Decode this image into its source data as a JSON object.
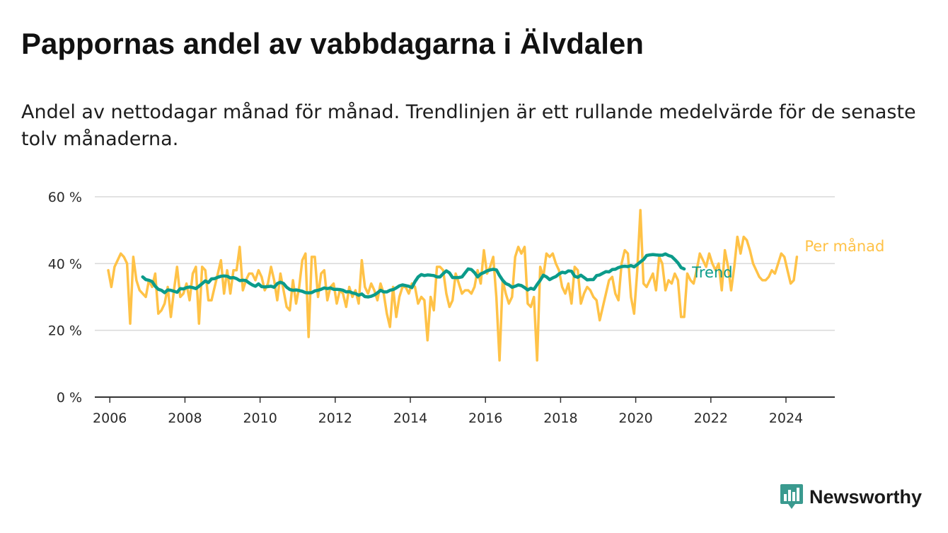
{
  "header": {
    "title": "Pappornas andel av vabbdagarna i Älvdalen",
    "subtitle": "Andel av nettodagar månad för månad. Trendlinjen är ett rullande medelvärde för de senaste tolv månaderna."
  },
  "brand": {
    "name": "Newsworthy",
    "color": "#3a9a8f",
    "icon": "bar-chart-badge-icon"
  },
  "chart_data": {
    "type": "line",
    "ylim": [
      0,
      60
    ],
    "yticks": [
      0,
      20,
      40,
      60
    ],
    "ytick_labels": [
      "0 %",
      "20 %",
      "40 %",
      "60 %"
    ],
    "xlim": [
      2005.6,
      2025.3
    ],
    "xticks": [
      2006,
      2008,
      2010,
      2012,
      2014,
      2016,
      2018,
      2020,
      2022,
      2024
    ],
    "xtick_labels": [
      "2006",
      "2008",
      "2010",
      "2012",
      "2014",
      "2016",
      "2018",
      "2020",
      "2022",
      "2024"
    ],
    "grid": true,
    "legend_position": "right-end",
    "series": [
      {
        "name": "Per månad",
        "color": "#ffc247",
        "x_start": 2005.958,
        "step": 0.08333,
        "values": [
          38,
          33,
          39,
          41,
          43,
          42,
          40,
          22,
          42,
          35,
          32,
          31,
          30,
          35,
          33,
          37,
          25,
          26,
          28,
          33,
          24,
          32,
          39,
          30,
          31,
          34,
          29,
          37,
          39,
          22,
          39,
          38,
          29,
          29,
          33,
          37,
          41,
          31,
          38,
          31,
          38,
          38,
          45,
          32,
          35,
          37,
          37,
          35,
          38,
          36,
          32,
          34,
          39,
          35,
          29,
          37,
          32,
          27,
          26,
          35,
          28,
          33,
          41,
          43,
          18,
          42,
          42,
          30,
          37,
          38,
          29,
          33,
          34,
          28,
          32,
          31,
          27,
          33,
          30,
          32,
          28,
          41,
          33,
          31,
          34,
          32,
          29,
          34,
          31,
          25,
          21,
          33,
          24,
          30,
          33,
          33,
          31,
          34,
          33,
          28,
          30,
          29,
          17,
          30,
          26,
          39,
          39,
          38,
          31,
          27,
          29,
          37,
          34,
          31,
          32,
          32,
          31,
          33,
          38,
          34,
          44,
          37,
          39,
          42,
          30,
          11,
          35,
          31,
          28,
          30,
          42,
          45,
          43,
          45,
          28,
          27,
          30,
          11,
          39,
          36,
          43,
          42,
          43,
          40,
          38,
          33,
          31,
          34,
          28,
          39,
          38,
          28,
          31,
          33,
          32,
          30,
          29,
          23,
          27,
          31,
          35,
          36,
          31,
          29,
          40,
          44,
          43,
          30,
          25,
          38,
          56,
          34,
          33,
          35,
          37,
          32,
          42,
          40,
          32,
          35,
          34,
          37,
          35,
          24,
          24,
          37,
          35,
          34,
          38,
          43,
          41,
          39,
          43,
          40,
          38,
          40,
          32,
          44,
          39,
          32,
          39,
          48,
          43,
          48,
          47,
          44,
          40,
          38,
          36,
          35,
          35,
          36,
          38,
          37,
          40,
          43,
          42,
          38,
          34,
          35,
          42
        ]
      },
      {
        "name": "Trend",
        "color": "#0b9b8a",
        "x_start": 2006.875,
        "step": 0.08333,
        "values": [
          36,
          35.2,
          35,
          34.6,
          33.2,
          32.3,
          32,
          31.3,
          32.1,
          32,
          31.7,
          31.4,
          32.5,
          32.4,
          32.8,
          33,
          32.8,
          32.5,
          33.2,
          34,
          34.8,
          34.3,
          35.4,
          35.5,
          35.9,
          36.2,
          36.3,
          36.2,
          35.7,
          35.8,
          35.5,
          34.9,
          35,
          34.9,
          34.2,
          33.6,
          33.2,
          33.9,
          33.1,
          33,
          33.1,
          33.2,
          32.9,
          34,
          34.4,
          34,
          32.9,
          32.2,
          32,
          32.1,
          31.9,
          31.7,
          31.3,
          31.2,
          31.3,
          31.8,
          32,
          32.3,
          32.7,
          32.5,
          32.7,
          32.3,
          32.3,
          32.2,
          32,
          31.5,
          31.6,
          31.2,
          31,
          30.5,
          30.9,
          30.1,
          30,
          30.2,
          30.6,
          31.2,
          32,
          31.5,
          31.5,
          32,
          32.2,
          32.7,
          33.3,
          33.6,
          33.4,
          33.2,
          32.8,
          34.6,
          36,
          36.7,
          36.4,
          36.6,
          36.5,
          36.4,
          36,
          36,
          37,
          37.8,
          37.2,
          35.8,
          35.8,
          35.8,
          36,
          37.2,
          38.4,
          38.2,
          37.3,
          36,
          36.9,
          37.3,
          37.8,
          38.1,
          38.3,
          38.1,
          36.4,
          35,
          34,
          33.6,
          32.9,
          33.2,
          33.6,
          33.4,
          32.8,
          32.1,
          32.6,
          32.3,
          33.7,
          35,
          36.5,
          36,
          35.2,
          35.7,
          36.1,
          36.9,
          37.4,
          37.2,
          37.8,
          37.7,
          36.2,
          35.9,
          36.5,
          35.8,
          35.1,
          35.2,
          35.2,
          36.4,
          36.6,
          37.1,
          37.6,
          37.5,
          38.2,
          38.3,
          38.8,
          39.1,
          39.2,
          39.1,
          39.4,
          39,
          39.7,
          40.5,
          41.2,
          42.4,
          42.6,
          42.7,
          42.6,
          42.5,
          42.5,
          42.9,
          42.4,
          42.1,
          41.2,
          40.2,
          38.8,
          38.4
        ]
      }
    ]
  }
}
